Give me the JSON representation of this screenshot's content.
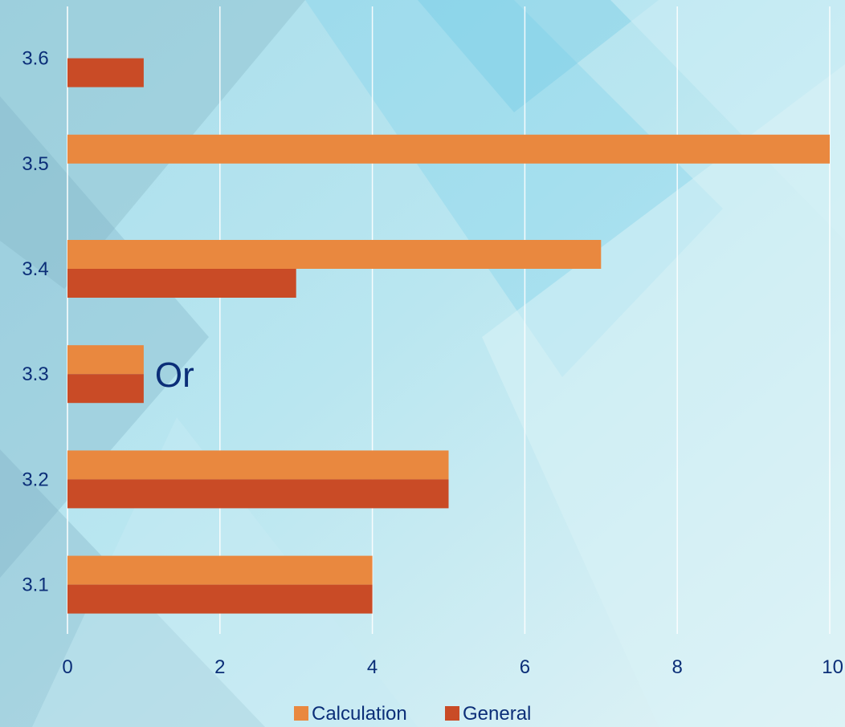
{
  "chart_data": {
    "type": "bar",
    "orientation": "horizontal",
    "categories": [
      "3.1",
      "3.2",
      "3.3",
      "3.4",
      "3.5",
      "3.6"
    ],
    "series": [
      {
        "name": "Calculation",
        "values": [
          4,
          5,
          1,
          7,
          10,
          0
        ]
      },
      {
        "name": "General",
        "values": [
          4,
          5,
          1,
          3,
          0,
          1
        ]
      }
    ],
    "xlim": [
      0,
      10
    ],
    "x_ticks": [
      0,
      2,
      4,
      6,
      8,
      10
    ],
    "grid": "vertical",
    "legend_position": "bottom",
    "annotations": [
      {
        "text": "Or",
        "category": "3.3",
        "x": 1
      }
    ]
  },
  "colors": {
    "calculation": "#E9883F",
    "general": "#C94B26",
    "text": "#0B2E78",
    "grid": "#FFFFFF"
  }
}
